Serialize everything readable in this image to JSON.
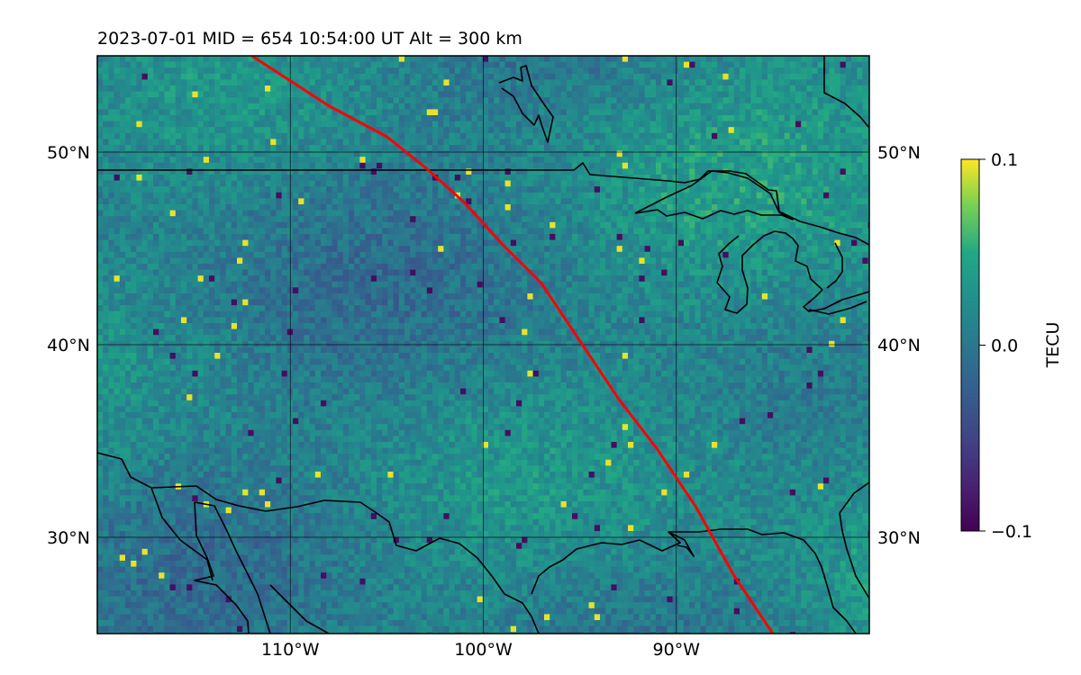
{
  "title": "2023-07-01  MID = 654    10:54:00  UT  Alt = 300 km",
  "lat_ticks": [
    {
      "value": 50,
      "label": "50°N"
    },
    {
      "value": 40,
      "label": "40°N"
    },
    {
      "value": 30,
      "label": "30°N"
    }
  ],
  "lon_ticks": [
    {
      "value": -110,
      "label": "110°W"
    },
    {
      "value": -100,
      "label": "100°W"
    },
    {
      "value": -90,
      "label": "90°W"
    }
  ],
  "colorbar": {
    "label": "TECU",
    "min": -0.1,
    "max": 0.1,
    "ticks": [
      {
        "value": 0.1,
        "label": "0.1"
      },
      {
        "value": 0.0,
        "label": "0.0"
      },
      {
        "value": -0.1,
        "label": "−0.1"
      }
    ],
    "colormap": "viridis"
  },
  "chart_data": {
    "type": "heatmap",
    "title": "2023-07-01  MID = 654    10:54:00  UT  Alt = 300 km",
    "projection": "PlateCarree",
    "lon_range": [
      -120,
      -80
    ],
    "lat_range": [
      25,
      55
    ],
    "grid": true,
    "value_range": [
      -0.1,
      0.1
    ],
    "units": "TECU",
    "track_color": "#ff0000",
    "coastline_color": "#000000",
    "track": [
      [
        -112,
        55
      ],
      [
        -108,
        52.4
      ],
      [
        -105,
        50.8
      ],
      [
        -103,
        49.2
      ],
      [
        -101,
        47.4
      ],
      [
        -99,
        45.2
      ],
      [
        -97,
        43.2
      ],
      [
        -95,
        40.2
      ],
      [
        -93,
        37.2
      ],
      [
        -91,
        34.6
      ],
      [
        -89,
        31.6
      ],
      [
        -87,
        28
      ],
      [
        -85,
        25
      ]
    ]
  }
}
